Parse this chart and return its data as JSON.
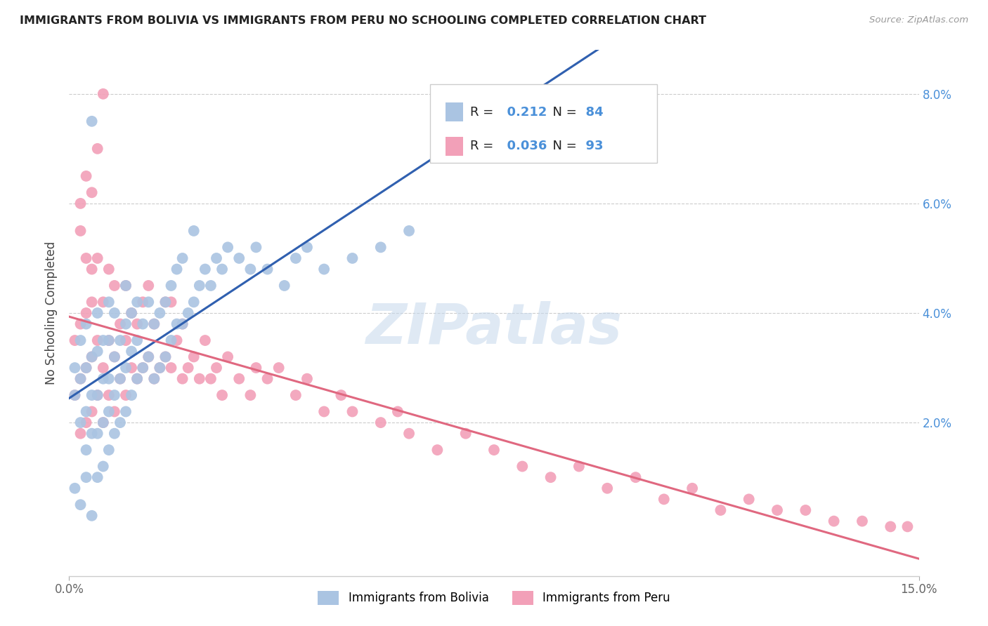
{
  "title": "IMMIGRANTS FROM BOLIVIA VS IMMIGRANTS FROM PERU NO SCHOOLING COMPLETED CORRELATION CHART",
  "source": "Source: ZipAtlas.com",
  "ylabel_label": "No Schooling Completed",
  "xmin": 0.0,
  "xmax": 0.15,
  "ymin": -0.008,
  "ymax": 0.088,
  "bolivia_R": 0.212,
  "bolivia_N": 84,
  "peru_R": 0.036,
  "peru_N": 93,
  "color_bolivia": "#aac4e2",
  "color_peru": "#f2a0b8",
  "color_bolivia_line": "#3060b0",
  "color_peru_line": "#e06880",
  "color_dash": "#b8c4d0",
  "watermark": "ZIPatlas",
  "bolivia_x": [
    0.001,
    0.001,
    0.002,
    0.002,
    0.002,
    0.003,
    0.003,
    0.003,
    0.003,
    0.004,
    0.004,
    0.004,
    0.004,
    0.005,
    0.005,
    0.005,
    0.005,
    0.005,
    0.006,
    0.006,
    0.006,
    0.006,
    0.007,
    0.007,
    0.007,
    0.007,
    0.007,
    0.008,
    0.008,
    0.008,
    0.008,
    0.009,
    0.009,
    0.009,
    0.01,
    0.01,
    0.01,
    0.01,
    0.011,
    0.011,
    0.011,
    0.012,
    0.012,
    0.012,
    0.013,
    0.013,
    0.014,
    0.014,
    0.015,
    0.015,
    0.016,
    0.016,
    0.017,
    0.017,
    0.018,
    0.018,
    0.019,
    0.019,
    0.02,
    0.02,
    0.021,
    0.022,
    0.022,
    0.023,
    0.024,
    0.025,
    0.026,
    0.027,
    0.028,
    0.03,
    0.032,
    0.033,
    0.035,
    0.038,
    0.04,
    0.042,
    0.045,
    0.05,
    0.055,
    0.06,
    0.001,
    0.002,
    0.003,
    0.004
  ],
  "bolivia_y": [
    0.025,
    0.03,
    0.02,
    0.028,
    0.035,
    0.015,
    0.022,
    0.03,
    0.038,
    0.018,
    0.025,
    0.032,
    0.075,
    0.01,
    0.018,
    0.025,
    0.033,
    0.04,
    0.012,
    0.02,
    0.028,
    0.035,
    0.015,
    0.022,
    0.028,
    0.035,
    0.042,
    0.018,
    0.025,
    0.032,
    0.04,
    0.02,
    0.028,
    0.035,
    0.022,
    0.03,
    0.038,
    0.045,
    0.025,
    0.033,
    0.04,
    0.028,
    0.035,
    0.042,
    0.03,
    0.038,
    0.032,
    0.042,
    0.028,
    0.038,
    0.03,
    0.04,
    0.032,
    0.042,
    0.035,
    0.045,
    0.038,
    0.048,
    0.038,
    0.05,
    0.04,
    0.042,
    0.055,
    0.045,
    0.048,
    0.045,
    0.05,
    0.048,
    0.052,
    0.05,
    0.048,
    0.052,
    0.048,
    0.045,
    0.05,
    0.052,
    0.048,
    0.05,
    0.052,
    0.055,
    0.008,
    0.005,
    0.01,
    0.003
  ],
  "peru_x": [
    0.001,
    0.001,
    0.002,
    0.002,
    0.002,
    0.003,
    0.003,
    0.003,
    0.004,
    0.004,
    0.004,
    0.005,
    0.005,
    0.005,
    0.006,
    0.006,
    0.006,
    0.007,
    0.007,
    0.007,
    0.008,
    0.008,
    0.008,
    0.009,
    0.009,
    0.01,
    0.01,
    0.01,
    0.011,
    0.011,
    0.012,
    0.012,
    0.013,
    0.013,
    0.014,
    0.014,
    0.015,
    0.015,
    0.016,
    0.017,
    0.017,
    0.018,
    0.018,
    0.019,
    0.02,
    0.02,
    0.021,
    0.022,
    0.023,
    0.024,
    0.025,
    0.026,
    0.027,
    0.028,
    0.03,
    0.032,
    0.033,
    0.035,
    0.037,
    0.04,
    0.042,
    0.045,
    0.048,
    0.05,
    0.055,
    0.058,
    0.06,
    0.065,
    0.07,
    0.075,
    0.08,
    0.085,
    0.09,
    0.095,
    0.1,
    0.105,
    0.11,
    0.115,
    0.12,
    0.125,
    0.13,
    0.135,
    0.14,
    0.145,
    0.148,
    0.002,
    0.002,
    0.003,
    0.003,
    0.004,
    0.004,
    0.005,
    0.006
  ],
  "peru_y": [
    0.025,
    0.035,
    0.018,
    0.028,
    0.038,
    0.02,
    0.03,
    0.04,
    0.022,
    0.032,
    0.042,
    0.025,
    0.035,
    0.05,
    0.02,
    0.03,
    0.042,
    0.025,
    0.035,
    0.048,
    0.022,
    0.032,
    0.045,
    0.028,
    0.038,
    0.025,
    0.035,
    0.045,
    0.03,
    0.04,
    0.028,
    0.038,
    0.03,
    0.042,
    0.032,
    0.045,
    0.028,
    0.038,
    0.03,
    0.032,
    0.042,
    0.03,
    0.042,
    0.035,
    0.028,
    0.038,
    0.03,
    0.032,
    0.028,
    0.035,
    0.028,
    0.03,
    0.025,
    0.032,
    0.028,
    0.025,
    0.03,
    0.028,
    0.03,
    0.025,
    0.028,
    0.022,
    0.025,
    0.022,
    0.02,
    0.022,
    0.018,
    0.015,
    0.018,
    0.015,
    0.012,
    0.01,
    0.012,
    0.008,
    0.01,
    0.006,
    0.008,
    0.004,
    0.006,
    0.004,
    0.004,
    0.002,
    0.002,
    0.001,
    0.001,
    0.055,
    0.06,
    0.05,
    0.065,
    0.048,
    0.062,
    0.07,
    0.08
  ]
}
